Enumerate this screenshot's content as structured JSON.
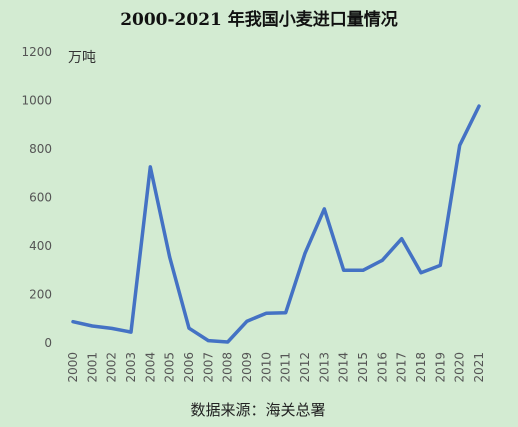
{
  "chart_data": {
    "type": "line",
    "title": "2000-2021 年我国小麦进口量情况",
    "unit_label": "万吨",
    "source": "数据来源：海关总署",
    "ylim": [
      0,
      1200
    ],
    "yticks": [
      0,
      200,
      400,
      600,
      800,
      1000,
      1200
    ],
    "grid": false,
    "categories": [
      "2000",
      "2001",
      "2002",
      "2003",
      "2004",
      "2005",
      "2006",
      "2007",
      "2008",
      "2009",
      "2010",
      "2011",
      "2012",
      "2013",
      "2014",
      "2015",
      "2016",
      "2017",
      "2018",
      "2019",
      "2020",
      "2021"
    ],
    "series": [
      {
        "values": [
          88,
          70,
          60,
          45,
          726,
          354,
          61,
          10,
          4,
          90,
          123,
          125,
          370,
          553,
          300,
          300,
          341,
          430,
          290,
          320,
          815,
          977
        ],
        "color": "#4472c4"
      }
    ]
  }
}
